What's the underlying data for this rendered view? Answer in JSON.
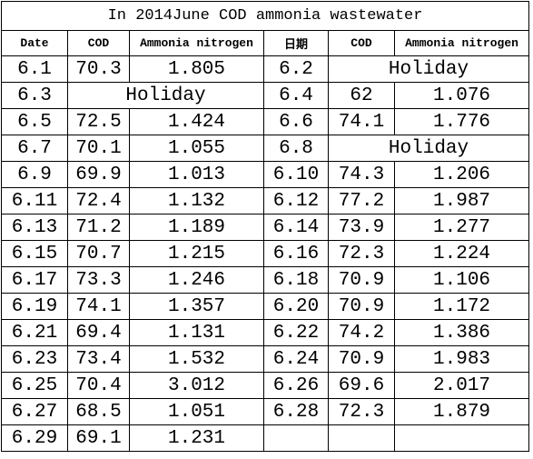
{
  "table": {
    "title": "In 2014June COD ammonia wastewater",
    "header": [
      "Date",
      "COD",
      "Ammonia nitrogen",
      "日期",
      "COD",
      "Ammonia nitrogen"
    ],
    "rows": [
      [
        "6.1",
        "70.3",
        "1.805",
        "6.2",
        "Holiday"
      ],
      [
        "6.3",
        "Holiday",
        "6.4",
        "62",
        "1.076"
      ],
      [
        "6.5",
        "72.5",
        "1.424",
        "6.6",
        "74.1",
        "1.776"
      ],
      [
        "6.7",
        "70.1",
        "1.055",
        "6.8",
        "Holiday"
      ],
      [
        "6.9",
        "69.9",
        "1.013",
        "6.10",
        "74.3",
        "1.206"
      ],
      [
        "6.11",
        "72.4",
        "1.132",
        "6.12",
        "77.2",
        "1.987"
      ],
      [
        "6.13",
        "71.2",
        "1.189",
        "6.14",
        "73.9",
        "1.277"
      ],
      [
        "6.15",
        "70.7",
        "1.215",
        "6.16",
        "72.3",
        "1.224"
      ],
      [
        "6.17",
        "73.3",
        "1.246",
        "6.18",
        "70.9",
        "1.106"
      ],
      [
        "6.19",
        "74.1",
        "1.357",
        "6.20",
        "70.9",
        "1.172"
      ],
      [
        "6.21",
        "69.4",
        "1.131",
        "6.22",
        "74.2",
        "1.386"
      ],
      [
        "6.23",
        "73.4",
        "1.532",
        "6.24",
        "70.9",
        "1.983"
      ],
      [
        "6.25",
        "70.4",
        "3.012",
        "6.26",
        "69.6",
        "2.017"
      ],
      [
        "6.27",
        "68.5",
        "1.051",
        "6.28",
        "72.3",
        "1.879"
      ],
      [
        "6.29",
        "69.1",
        "1.231"
      ]
    ]
  }
}
